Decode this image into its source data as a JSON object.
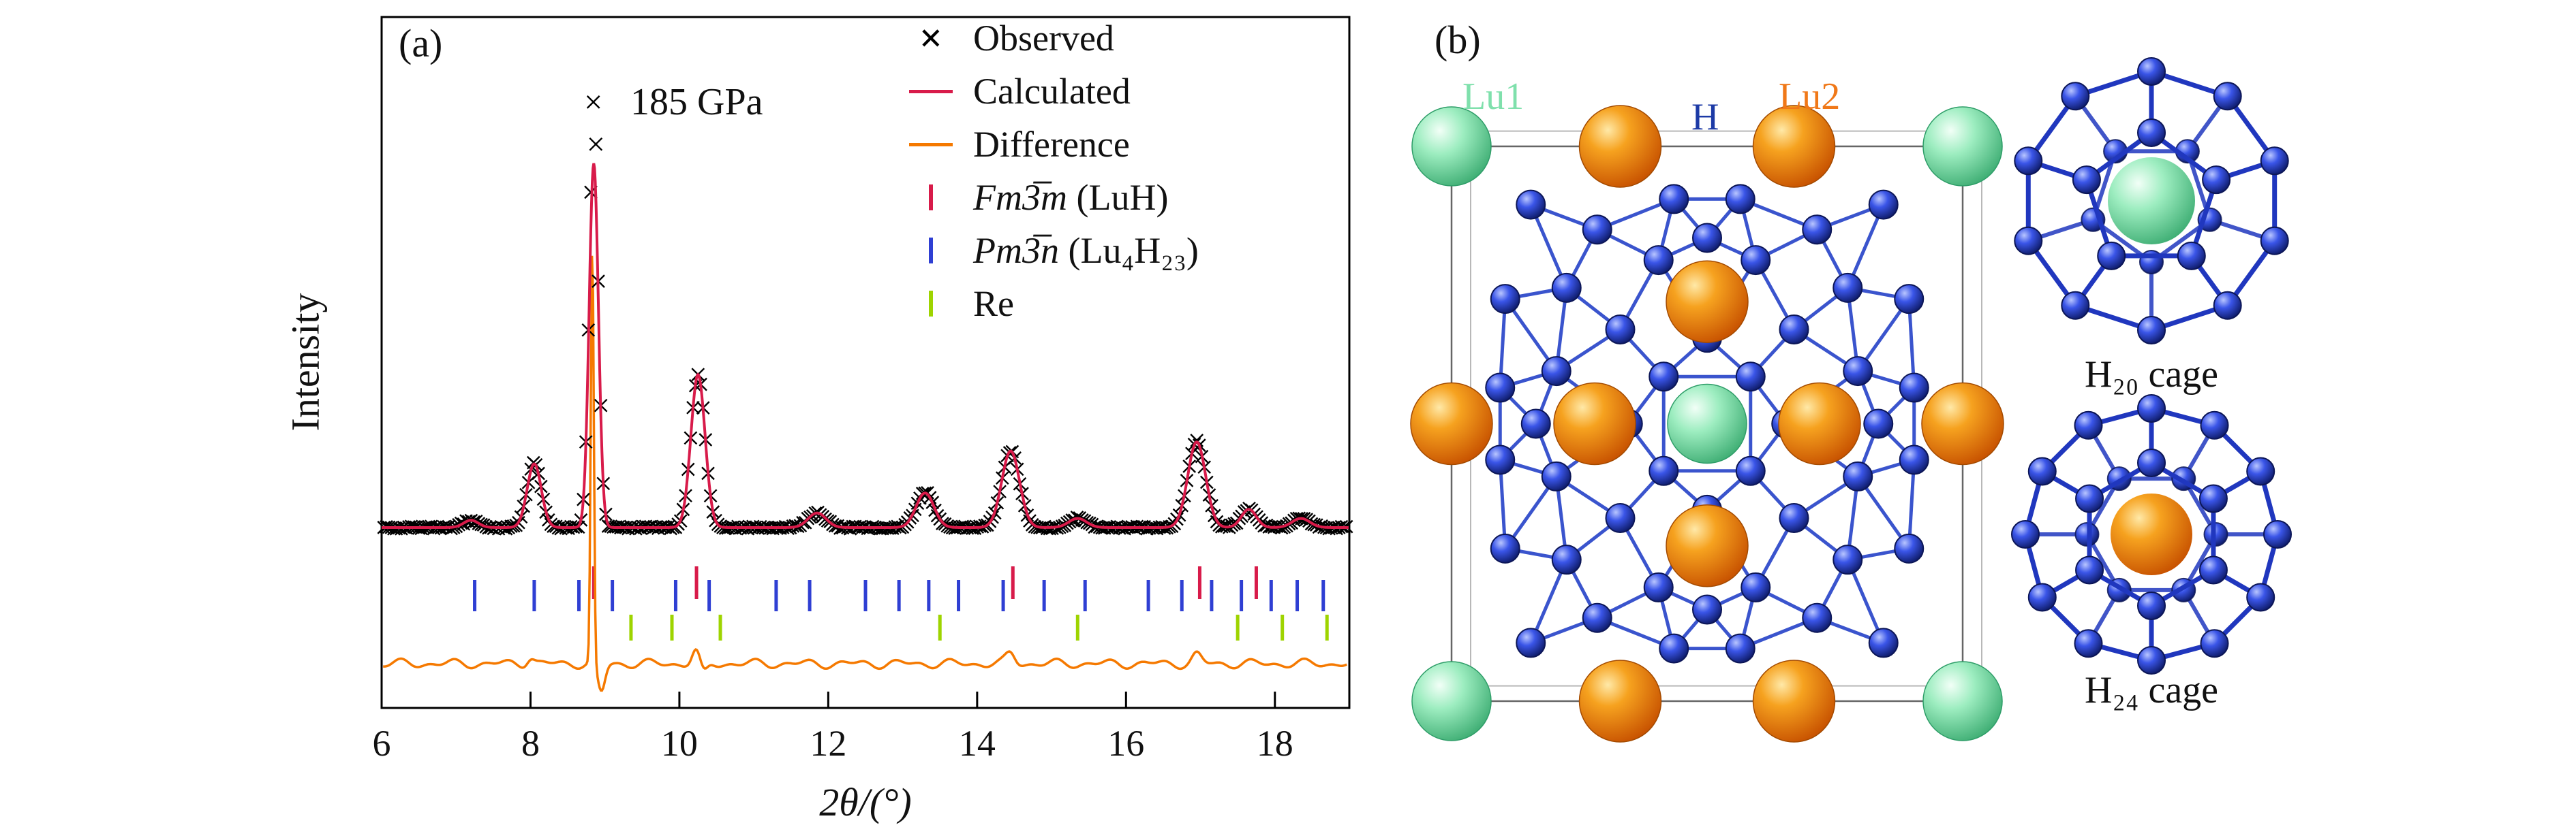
{
  "figure": {
    "background": "#ffffff"
  },
  "panel_a": {
    "tag": "(a)",
    "annotation": "185 GPa",
    "legend": [
      {
        "marker": "cross",
        "color": "#000000",
        "italic_symbol": "",
        "label": "Observed"
      },
      {
        "marker": "line",
        "color": "#d81b4a",
        "italic_symbol": "",
        "label": "Calculated"
      },
      {
        "marker": "line",
        "color": "#f57900",
        "italic_symbol": "",
        "label": "Difference"
      },
      {
        "marker": "tick",
        "color": "#d81b4a",
        "italic_symbol": "Fm3̅m",
        "label": " (LuH)"
      },
      {
        "marker": "tick",
        "color": "#2f3fd3",
        "italic_symbol": "Pm3̅n",
        "label": " (Lu₄H₂₃)"
      },
      {
        "marker": "tick",
        "color": "#9ed400",
        "italic_symbol": "",
        "label": "Re"
      }
    ]
  },
  "chart_data": {
    "type": "line",
    "title": "",
    "xlabel": "2θ/(°)",
    "ylabel": "Intensity",
    "xlim": [
      6,
      19
    ],
    "x_ticks": [
      6,
      8,
      10,
      12,
      14,
      16,
      18
    ],
    "annotation": "185 GPa",
    "grid": false,
    "legend_position": "top-right",
    "series": [
      {
        "name": "Observed",
        "style": "x-markers",
        "color": "#000000"
      },
      {
        "name": "Calculated",
        "style": "line",
        "color": "#d81b4a"
      },
      {
        "name": "Difference",
        "style": "line",
        "color": "#f57900"
      }
    ],
    "peaks": [
      {
        "two_theta": 7.2,
        "intensity": 0.02,
        "width": 0.1
      },
      {
        "two_theta": 8.05,
        "intensity": 0.175,
        "width": 0.095
      },
      {
        "two_theta": 8.85,
        "intensity": 1.0,
        "width": 0.062
      },
      {
        "two_theta": 10.25,
        "intensity": 0.42,
        "width": 0.095
      },
      {
        "two_theta": 11.85,
        "intensity": 0.04,
        "width": 0.12
      },
      {
        "two_theta": 13.3,
        "intensity": 0.095,
        "width": 0.12
      },
      {
        "two_theta": 14.45,
        "intensity": 0.21,
        "width": 0.12
      },
      {
        "two_theta": 15.35,
        "intensity": 0.025,
        "width": 0.12
      },
      {
        "two_theta": 16.95,
        "intensity": 0.235,
        "width": 0.12
      },
      {
        "two_theta": 17.65,
        "intensity": 0.05,
        "width": 0.1
      },
      {
        "two_theta": 18.35,
        "intensity": 0.025,
        "width": 0.12
      }
    ],
    "phase_ticks": [
      {
        "phase": "Fm3̅m (LuH)",
        "color": "#d81b4a",
        "positions": [
          8.85,
          10.23,
          14.48,
          16.99,
          17.75
        ]
      },
      {
        "phase": "Pm3̅n (Lu₄H₂₃)",
        "color": "#2f3fd3",
        "positions": [
          7.25,
          8.05,
          8.65,
          9.1,
          9.95,
          10.4,
          11.3,
          11.75,
          12.5,
          12.95,
          13.35,
          13.75,
          14.35,
          14.9,
          15.45,
          16.3,
          16.75,
          17.15,
          17.55,
          17.95,
          18.3,
          18.65
        ]
      },
      {
        "phase": "Re",
        "color": "#9ed400",
        "positions": [
          9.35,
          9.9,
          10.55,
          13.5,
          15.35,
          17.5,
          18.1,
          18.7
        ]
      }
    ]
  },
  "panel_b": {
    "tag": "(b)",
    "labels": {
      "lu1": "Lu1",
      "h": "H",
      "lu2": "Lu2"
    },
    "cage_labels": [
      "H₂₀ cage",
      "H₂₄ cage"
    ],
    "colors": {
      "lu1": "#7fe0ac",
      "lu2": "#f07818",
      "h": "#2b46d9",
      "bond": "#2541c8"
    },
    "structure": {
      "lu1_sites": [
        [
          0,
          0
        ],
        [
          1,
          0
        ],
        [
          0,
          1
        ],
        [
          1,
          1
        ],
        [
          0.5,
          0.5
        ]
      ],
      "lu2_sites": [
        [
          0.33,
          0
        ],
        [
          0.67,
          0
        ],
        [
          0.33,
          1
        ],
        [
          0.67,
          1
        ],
        [
          0,
          0.5
        ],
        [
          1,
          0.5
        ],
        [
          0.5,
          0.28
        ],
        [
          0.5,
          0.72
        ],
        [
          0.28,
          0.5
        ],
        [
          0.72,
          0.5
        ]
      ],
      "h_sites": [
        [
          0.155,
          0.105
        ],
        [
          0.285,
          0.15
        ],
        [
          0.105,
          0.275
        ],
        [
          0.225,
          0.255
        ],
        [
          0.845,
          0.105
        ],
        [
          0.715,
          0.15
        ],
        [
          0.895,
          0.275
        ],
        [
          0.775,
          0.255
        ],
        [
          0.155,
          0.895
        ],
        [
          0.285,
          0.85
        ],
        [
          0.105,
          0.725
        ],
        [
          0.225,
          0.745
        ],
        [
          0.845,
          0.895
        ],
        [
          0.715,
          0.85
        ],
        [
          0.895,
          0.725
        ],
        [
          0.775,
          0.745
        ],
        [
          0.435,
          0.095
        ],
        [
          0.565,
          0.095
        ],
        [
          0.5,
          0.165
        ],
        [
          0.405,
          0.205
        ],
        [
          0.595,
          0.205
        ],
        [
          0.435,
          0.905
        ],
        [
          0.565,
          0.905
        ],
        [
          0.5,
          0.835
        ],
        [
          0.405,
          0.795
        ],
        [
          0.595,
          0.795
        ],
        [
          0.095,
          0.435
        ],
        [
          0.095,
          0.565
        ],
        [
          0.165,
          0.5
        ],
        [
          0.205,
          0.405
        ],
        [
          0.205,
          0.595
        ],
        [
          0.905,
          0.435
        ],
        [
          0.905,
          0.565
        ],
        [
          0.835,
          0.5
        ],
        [
          0.795,
          0.405
        ],
        [
          0.795,
          0.595
        ],
        [
          0.415,
          0.415
        ],
        [
          0.585,
          0.415
        ],
        [
          0.415,
          0.585
        ],
        [
          0.585,
          0.585
        ],
        [
          0.5,
          0.345
        ],
        [
          0.5,
          0.655
        ],
        [
          0.345,
          0.5
        ],
        [
          0.655,
          0.5
        ],
        [
          0.33,
          0.33
        ],
        [
          0.67,
          0.33
        ],
        [
          0.33,
          0.67
        ],
        [
          0.67,
          0.67
        ]
      ]
    }
  }
}
